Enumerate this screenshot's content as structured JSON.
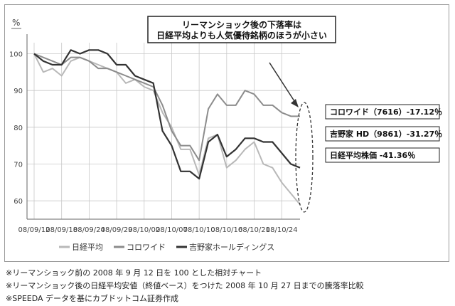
{
  "headline": {
    "line1": "リーマンショック後の下落率は",
    "line2": "日経平均よりも人気優待銘柄のほうが小さい"
  },
  "chart_data": {
    "type": "line",
    "unit_label": "%",
    "ylim": [
      55,
      103
    ],
    "yticks": [
      60,
      70,
      80,
      90,
      100
    ],
    "grid": true,
    "x_labels": [
      "08/09/12",
      "08/09/18",
      "08/09/24",
      "08/09/29",
      "08/10/02",
      "08/10/07",
      "08/10/10",
      "08/10/16",
      "08/10/21",
      "08/10/24"
    ],
    "x": [
      0,
      1,
      2,
      3,
      4,
      5,
      6,
      7,
      8,
      9,
      10,
      11,
      12,
      13,
      14,
      15,
      16,
      17,
      18,
      19,
      20,
      21,
      22,
      23,
      24,
      25,
      26,
      27,
      28,
      29
    ],
    "label_positions": [
      0,
      3,
      6,
      9,
      12,
      15,
      18,
      21,
      24,
      27
    ],
    "series": [
      {
        "name": "日経平均",
        "color": "#b8b8b8",
        "values": [
          100,
          95,
          96,
          94,
          98,
          99,
          98,
          97,
          96,
          95,
          92,
          93,
          91,
          90,
          84,
          80,
          74,
          74,
          67,
          77,
          78,
          69,
          71,
          74,
          76,
          70,
          69,
          65,
          62,
          59
        ]
      },
      {
        "name": "コロワイド",
        "color": "#8c8c8c",
        "values": [
          100,
          99,
          98,
          97,
          99,
          99,
          98,
          96,
          96,
          95,
          94,
          93,
          92,
          91,
          86,
          79,
          75,
          75,
          71,
          85,
          89,
          86,
          86,
          90,
          89,
          86,
          86,
          84,
          83,
          83
        ]
      },
      {
        "name": "吉野家ホールディングス",
        "color": "#333333",
        "values": [
          100,
          98,
          97,
          97,
          101,
          100,
          101,
          101,
          100,
          97,
          97,
          94,
          93,
          92,
          79,
          75,
          68,
          68,
          66,
          76,
          78,
          72,
          74,
          77,
          77,
          76,
          76,
          73,
          70,
          69
        ]
      }
    ],
    "result_boxes": [
      "コロワイド（7616）-17.12％",
      "吉野家 HD（9861）-31.27％",
      "日経平均株価 -41.36％"
    ]
  },
  "notes": [
    "※リーマンショック前の 2008 年 9 月 12 日を 100 とした相対チャート",
    "※リーマンショック後の日経平均安値（終値ベース）をつけた 2008 年 10 月 27 日までの騰落率比較",
    "※SPEEDA データを基にカブドットコム証券作成"
  ]
}
